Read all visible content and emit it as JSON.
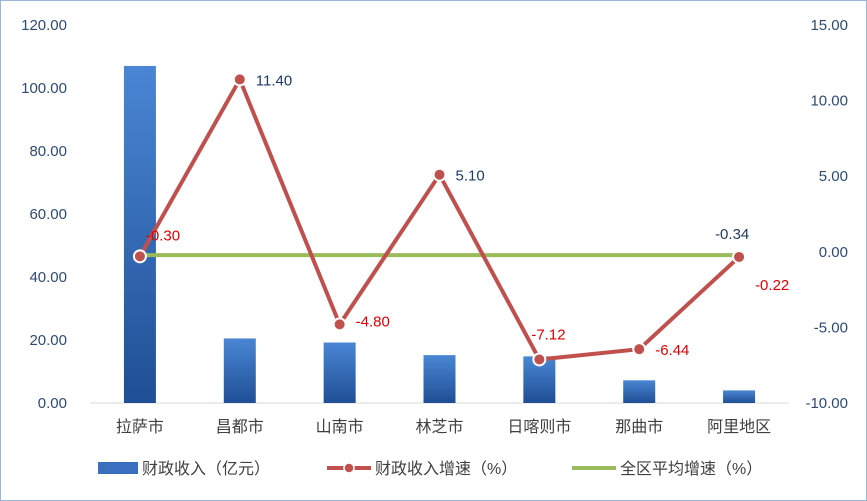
{
  "chart_data": {
    "type": "bar",
    "title": "",
    "categories": [
      "拉萨市",
      "昌都市",
      "山南市",
      "林芝市",
      "日喀则市",
      "那曲市",
      "阿里地区"
    ],
    "y_left": {
      "ylim": [
        0,
        120
      ],
      "ticks": [
        "0.00",
        "20.00",
        "40.00",
        "60.00",
        "80.00",
        "100.00",
        "120.00"
      ]
    },
    "y_right": {
      "ylim": [
        -10,
        15
      ],
      "ticks": [
        "-10.00",
        "-5.00",
        "0.00",
        "5.00",
        "10.00",
        "15.00"
      ]
    },
    "series": [
      {
        "name": "财政收入（亿元）",
        "type": "bar",
        "axis": "left",
        "color": "#3a6fbf",
        "values": [
          107,
          20.5,
          19.2,
          15.2,
          14.8,
          7.2,
          4.0
        ]
      },
      {
        "name": "财政收入增速（%）",
        "type": "line",
        "axis": "right",
        "color": "#c0504d",
        "values": [
          -0.3,
          11.4,
          -4.8,
          5.1,
          -7.12,
          -6.44,
          -0.34
        ],
        "labels": [
          "-0.30",
          "11.40",
          "-4.80",
          "5.10",
          "-7.12",
          "-6.44",
          "-0.34"
        ],
        "label_colors": [
          "#e00000",
          "#1f3b63",
          "#e00000",
          "#1f3b63",
          "#e00000",
          "#e00000",
          "#1f3b63"
        ]
      },
      {
        "name": "全区平均增速（%）",
        "type": "line",
        "axis": "right",
        "color": "#9bbb59",
        "values": [
          -0.22,
          -0.22,
          -0.22,
          -0.22,
          -0.22,
          -0.22,
          -0.22
        ],
        "end_label": "-0.22",
        "end_label_color": "#e00000"
      }
    ],
    "legend": {
      "position": "bottom"
    }
  }
}
